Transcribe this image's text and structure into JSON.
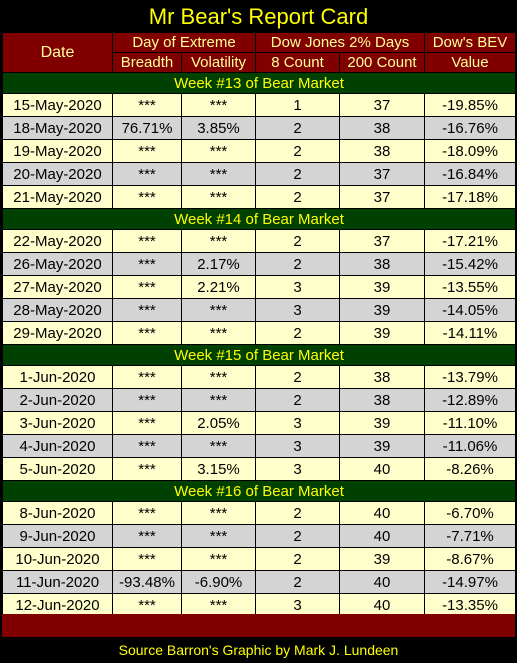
{
  "title": "Mr Bear's Report Card",
  "headers": {
    "date": "Date",
    "day_of_extreme": "Day of Extreme",
    "dow_jones_2pct": "Dow Jones 2% Days",
    "dow_bev": "Dow's BEV",
    "breadth": "Breadth",
    "volatility": "Volatility",
    "count8": "8 Count",
    "count200": "200 Count",
    "value": "Value"
  },
  "weeks": [
    {
      "label": "Week #13 of Bear Market",
      "rows": [
        [
          "15-May-2020",
          "***",
          "***",
          "1",
          "37",
          "-19.85%"
        ],
        [
          "18-May-2020",
          "76.71%",
          "3.85%",
          "2",
          "38",
          "-16.76%"
        ],
        [
          "19-May-2020",
          "***",
          "***",
          "2",
          "38",
          "-18.09%"
        ],
        [
          "20-May-2020",
          "***",
          "***",
          "2",
          "37",
          "-16.84%"
        ],
        [
          "21-May-2020",
          "***",
          "***",
          "2",
          "37",
          "-17.18%"
        ]
      ]
    },
    {
      "label": "Week #14 of Bear Market",
      "rows": [
        [
          "22-May-2020",
          "***",
          "***",
          "2",
          "37",
          "-17.21%"
        ],
        [
          "26-May-2020",
          "***",
          "2.17%",
          "2",
          "38",
          "-15.42%"
        ],
        [
          "27-May-2020",
          "***",
          "2.21%",
          "3",
          "39",
          "-13.55%"
        ],
        [
          "28-May-2020",
          "***",
          "***",
          "3",
          "39",
          "-14.05%"
        ],
        [
          "29-May-2020",
          "***",
          "***",
          "2",
          "39",
          "-14.11%"
        ]
      ]
    },
    {
      "label": "Week #15 of Bear Market",
      "rows": [
        [
          "1-Jun-2020",
          "***",
          "***",
          "2",
          "38",
          "-13.79%"
        ],
        [
          "2-Jun-2020",
          "***",
          "***",
          "2",
          "38",
          "-12.89%"
        ],
        [
          "3-Jun-2020",
          "***",
          "2.05%",
          "3",
          "39",
          "-11.10%"
        ],
        [
          "4-Jun-2020",
          "***",
          "***",
          "3",
          "39",
          "-11.06%"
        ],
        [
          "5-Jun-2020",
          "***",
          "3.15%",
          "3",
          "40",
          "-8.26%"
        ]
      ]
    },
    {
      "label": "Week #16 of Bear Market",
      "rows": [
        [
          "8-Jun-2020",
          "***",
          "***",
          "2",
          "40",
          "-6.70%"
        ],
        [
          "9-Jun-2020",
          "***",
          "***",
          "2",
          "40",
          "-7.71%"
        ],
        [
          "10-Jun-2020",
          "***",
          "***",
          "2",
          "39",
          "-8.67%"
        ],
        [
          "11-Jun-2020",
          "-93.48%",
          "-6.90%",
          "2",
          "40",
          "-14.97%"
        ],
        [
          "12-Jun-2020",
          "***",
          "***",
          "3",
          "40",
          "-13.35%"
        ]
      ]
    }
  ],
  "source": "Source Barron's  Graphic by Mark J. Lundeen",
  "colors": {
    "background": "#000000",
    "header_bg": "#800000",
    "header_text": "#ffff99",
    "title_text": "#ffff00",
    "week_bg": "#004000",
    "row_light": "#ffffcc",
    "row_grey": "#d4d4d4"
  }
}
